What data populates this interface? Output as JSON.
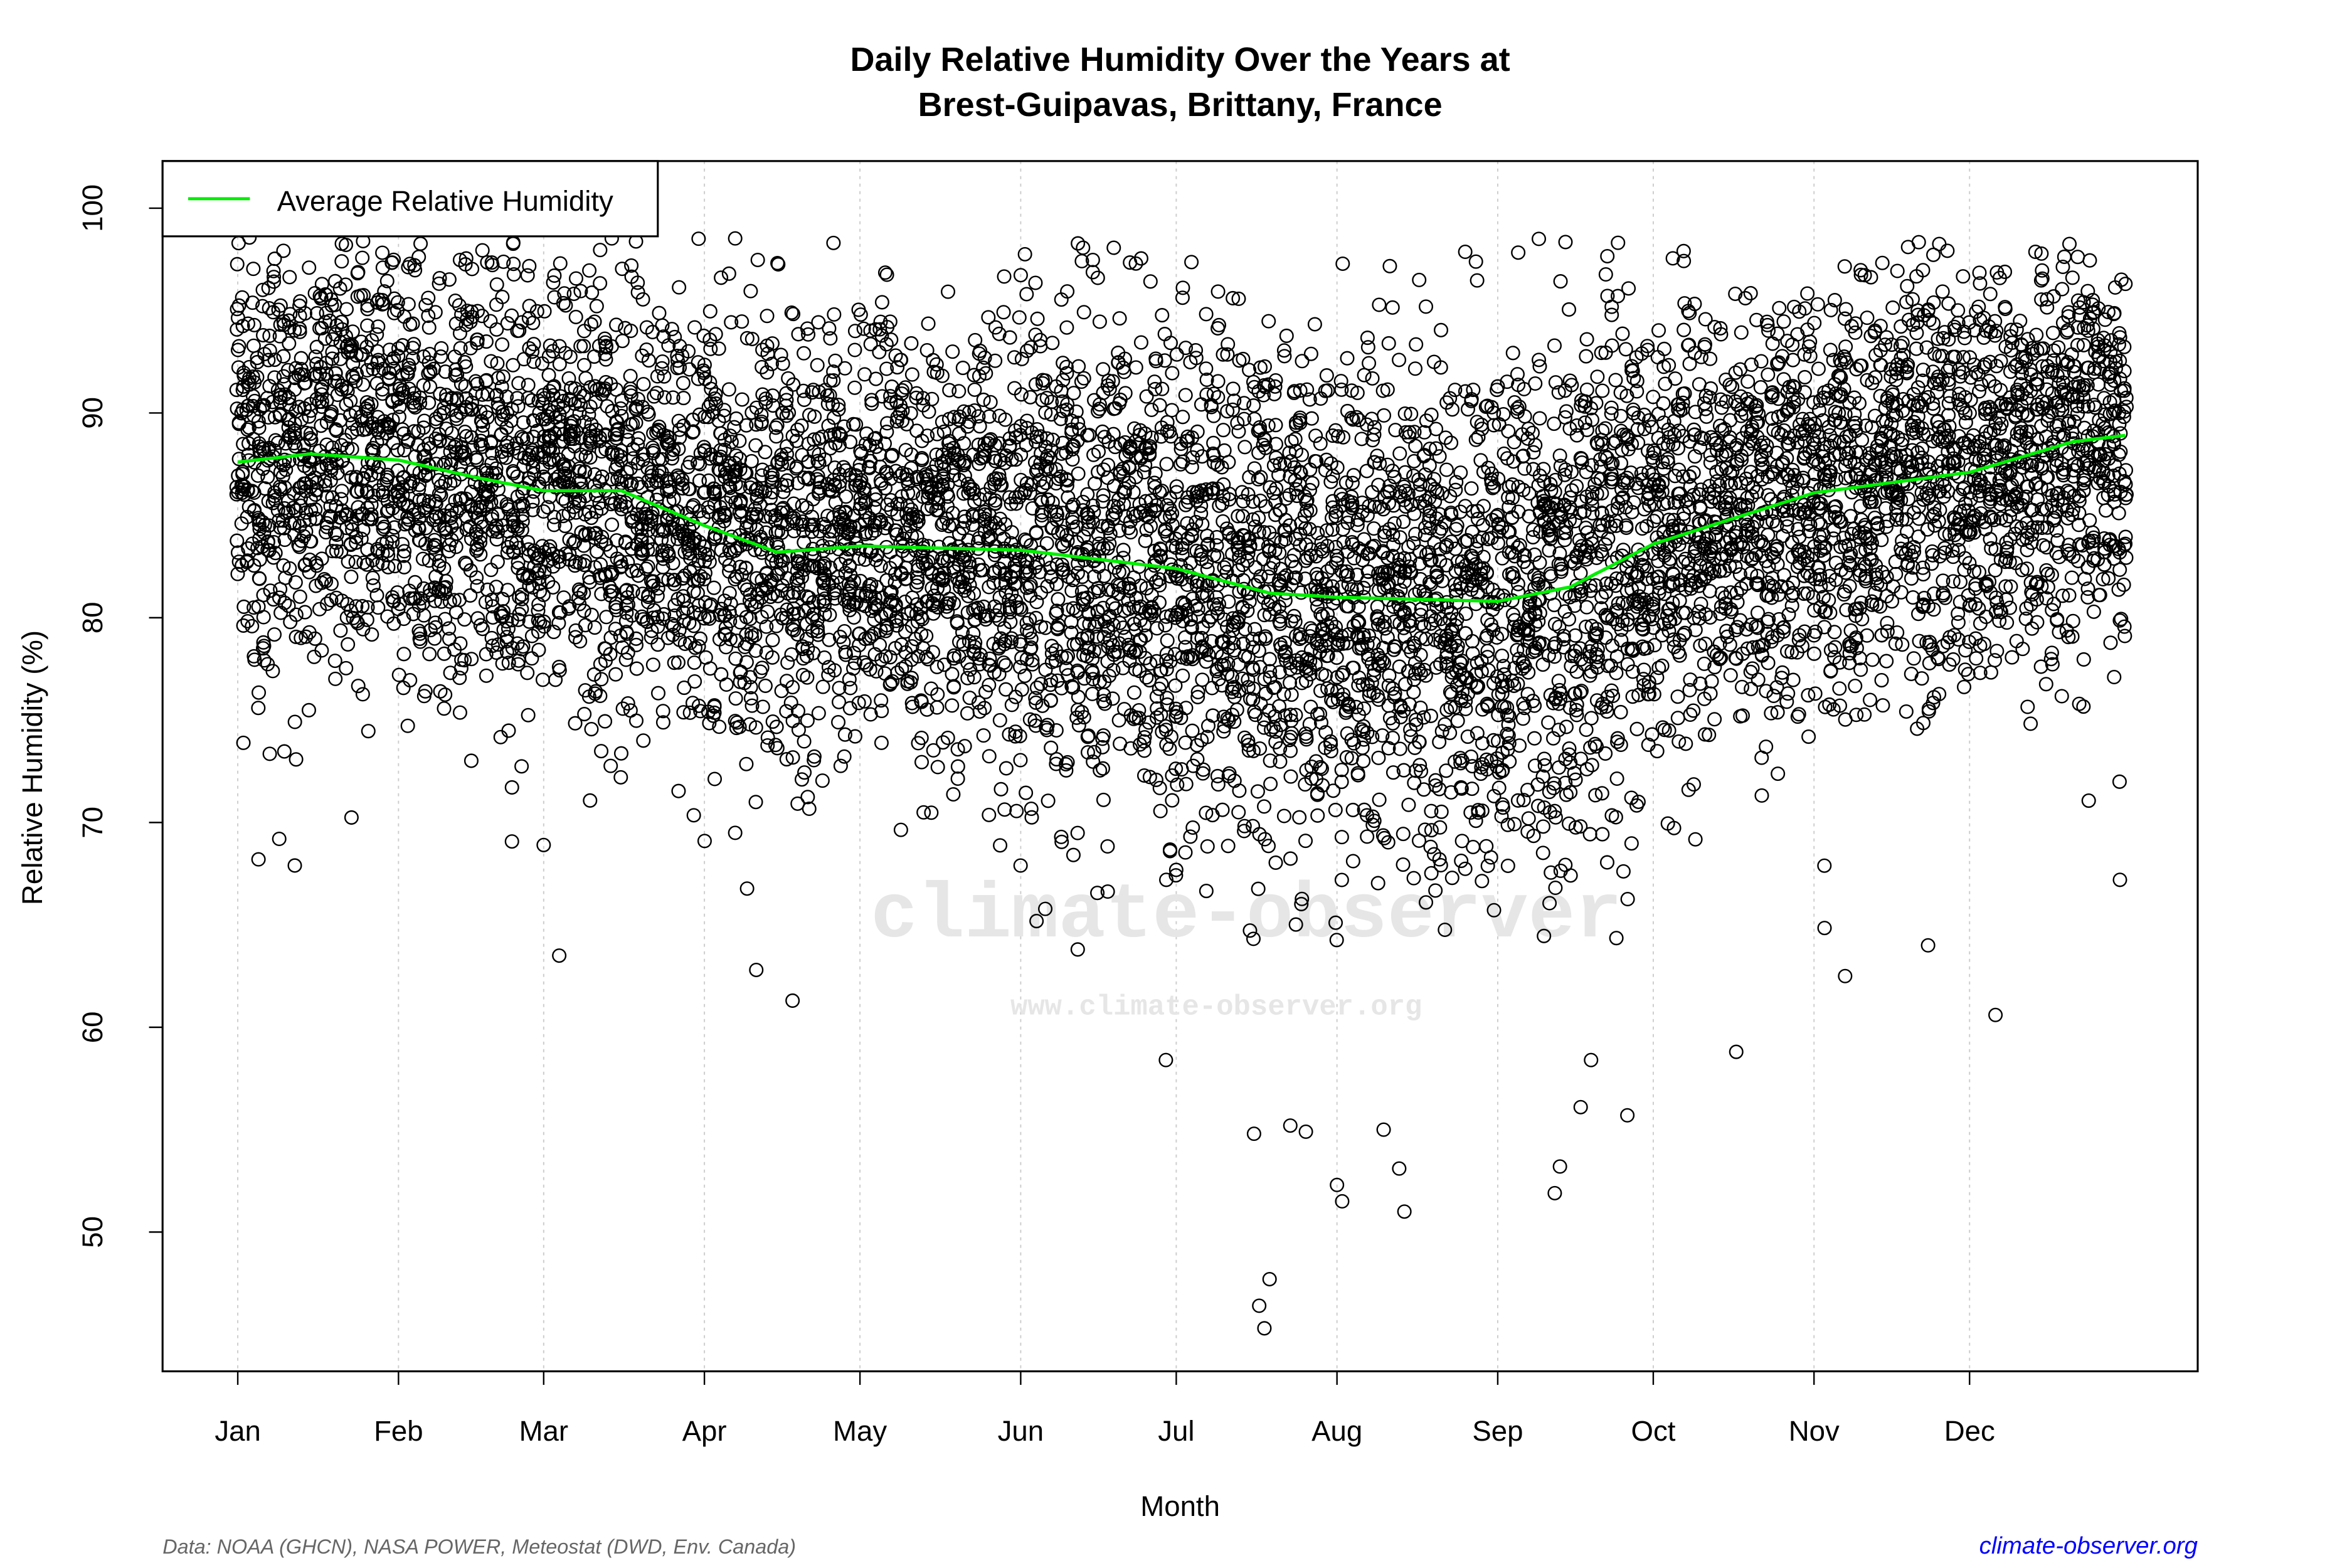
{
  "chart_data": {
    "type": "scatter",
    "title": "Daily Relative Humidity Over the Years at",
    "subtitle": "Brest-Guipavas, Brittany, France",
    "xlabel": "Month",
    "ylabel": "Relative Humidity  (%)",
    "xlim": [
      -13.5,
      379
    ],
    "ylim": [
      43.2,
      102.3
    ],
    "x_unit": "day of year",
    "x_ticks": [
      {
        "day": 1,
        "label": "Jan"
      },
      {
        "day": 32,
        "label": "Feb"
      },
      {
        "day": 60,
        "label": "Mar"
      },
      {
        "day": 91,
        "label": "Apr"
      },
      {
        "day": 121,
        "label": "May"
      },
      {
        "day": 152,
        "label": "Jun"
      },
      {
        "day": 182,
        "label": "Jul"
      },
      {
        "day": 213,
        "label": "Aug"
      },
      {
        "day": 244,
        "label": "Sep"
      },
      {
        "day": 274,
        "label": "Oct"
      },
      {
        "day": 305,
        "label": "Nov"
      },
      {
        "day": 335,
        "label": "Dec"
      }
    ],
    "y_ticks": [
      50,
      60,
      70,
      80,
      90,
      100
    ],
    "grid": "vertical dotted at month starts",
    "legend": {
      "placement": "top-left",
      "entries": [
        {
          "label": "Average Relative Humidity",
          "color": "#00ee00"
        }
      ]
    },
    "series": [
      {
        "name": "Average Relative Humidity",
        "kind": "line",
        "color": "#00ee00",
        "x": [
          1,
          15,
          32,
          46,
          60,
          75,
          91,
          105,
          121,
          152,
          182,
          200,
          213,
          244,
          258,
          274,
          305,
          335,
          355,
          365
        ],
        "y": [
          87.6,
          88.0,
          87.7,
          86.9,
          86.2,
          86.2,
          84.5,
          83.2,
          83.5,
          83.3,
          82.4,
          81.2,
          81.0,
          80.8,
          81.5,
          83.6,
          86.1,
          87.1,
          88.6,
          88.9
        ]
      },
      {
        "name": "daily observations",
        "kind": "points",
        "marker": "open circle",
        "color": "#000000",
        "note_outliers_x": [
          5,
          9,
          12,
          60,
          63,
          101,
          108,
          163,
          180,
          197,
          198,
          199,
          200,
          204,
          207,
          213,
          214,
          222,
          225,
          226,
          255,
          256,
          260,
          262,
          269,
          290,
          311,
          327,
          340,
          364
        ],
        "note_outliers_y": [
          68.2,
          69.2,
          67.9,
          68.9,
          63.5,
          62.8,
          61.3,
          63.8,
          58.4,
          54.8,
          46.4,
          45.3,
          47.7,
          55.2,
          54.9,
          52.3,
          51.5,
          55.0,
          53.1,
          51.0,
          51.9,
          53.2,
          56.1,
          58.4,
          55.7,
          58.8,
          62.5,
          64.0,
          60.6,
          67.2
        ]
      }
    ]
  },
  "footer": {
    "source": "Data: NOAA (GHCN), NASA POWER, Meteostat (DWD, Env. Canada)",
    "link": "climate-observer.org"
  },
  "watermark": {
    "main": "climate-observer",
    "url": "www.climate-observer.org"
  },
  "colors": {
    "average_line": "#00ee00",
    "points": "#000000",
    "link": "#0000ff"
  }
}
